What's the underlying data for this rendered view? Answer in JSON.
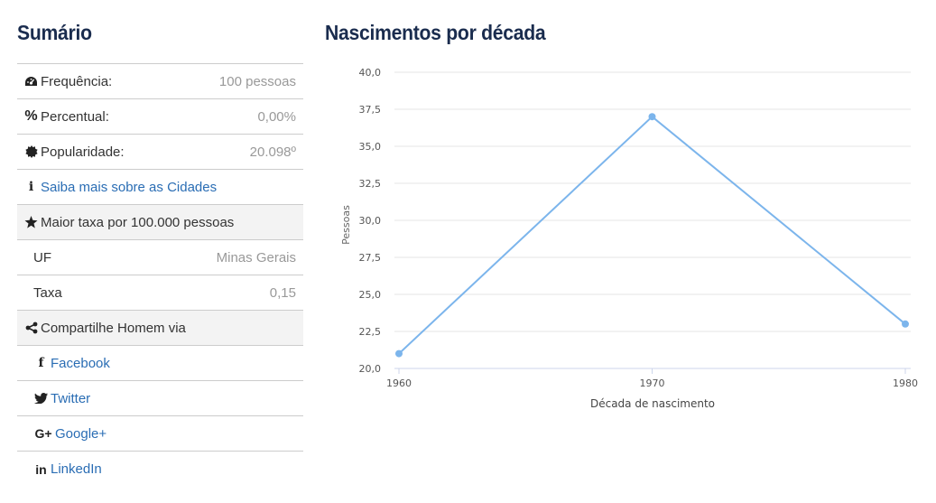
{
  "summary": {
    "title": "Sumário",
    "rows": [
      {
        "icon": "dashboard-icon",
        "label": "Frequência:",
        "value": "100 pessoas"
      },
      {
        "icon": "percent-icon",
        "label": "Percentual:",
        "value": "0,00%"
      },
      {
        "icon": "badge-icon",
        "label": "Popularidade:",
        "value": "20.098º"
      }
    ],
    "info_link": {
      "icon": "info-icon",
      "label": "Saiba mais sobre as Cidades"
    },
    "rate_header": {
      "icon": "star-icon",
      "label": "Maior taxa por 100.000 pessoas"
    },
    "rate_rows": [
      {
        "label": "UF",
        "value": "Minas Gerais"
      },
      {
        "label": "Taxa",
        "value": "0,15"
      }
    ],
    "share_header": {
      "icon": "share-icon",
      "label": "Compartilhe Homem via"
    },
    "share_links": [
      {
        "icon": "facebook-icon",
        "label": "Facebook"
      },
      {
        "icon": "twitter-icon",
        "label": "Twitter"
      },
      {
        "icon": "google-plus-icon",
        "label": "Google+"
      },
      {
        "icon": "linkedin-icon",
        "label": "LinkedIn"
      }
    ]
  },
  "chart_data": {
    "type": "line",
    "title": "Nascimentos por década",
    "xlabel": "Década de nascimento",
    "ylabel": "Pessoas",
    "categories": [
      "1960",
      "1970",
      "1980"
    ],
    "series": [
      {
        "values": [
          21,
          37,
          23
        ],
        "color": "#7cb5ec"
      }
    ],
    "ylim": [
      20,
      40
    ],
    "yticks": [
      "20,0",
      "22,5",
      "25,0",
      "27,5",
      "30,0",
      "32,5",
      "35,0",
      "37,5",
      "40,0"
    ],
    "grid": true
  }
}
